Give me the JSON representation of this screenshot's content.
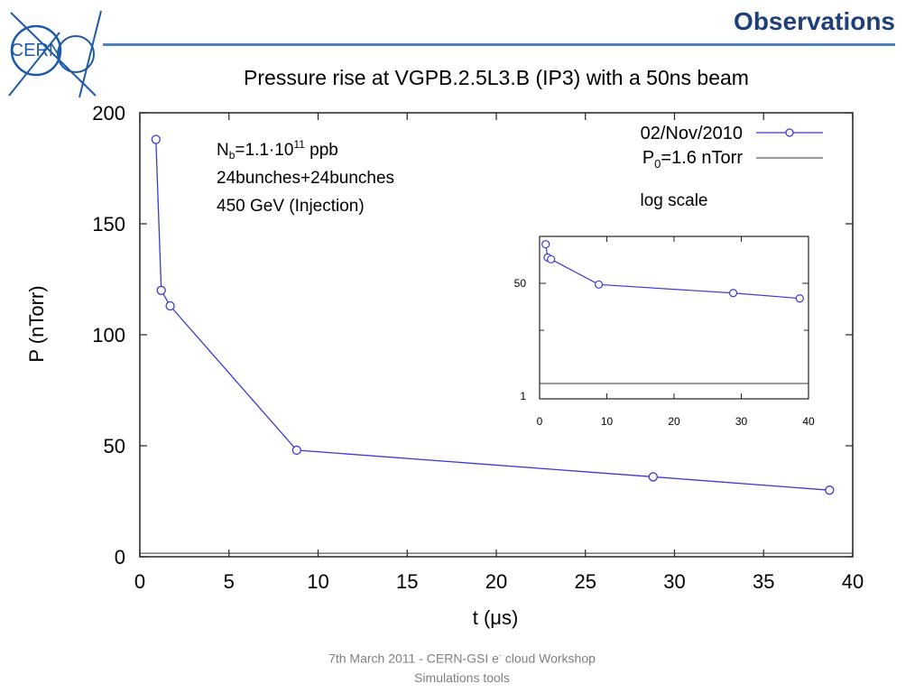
{
  "header": {
    "logo_text": "CERN",
    "slide_title": "Observations"
  },
  "chart_data": [
    {
      "type": "line",
      "title": "Pressure rise at VGPB.2.5L3.B (IP3) with a 50ns beam",
      "xlabel": "t (μs)",
      "ylabel": "P (nTorr)",
      "xlim": [
        0,
        40
      ],
      "ylim": [
        0,
        200
      ],
      "xticks": [
        0,
        5,
        10,
        15,
        20,
        25,
        30,
        35,
        40
      ],
      "yticks": [
        0,
        50,
        100,
        150,
        200
      ],
      "grid": false,
      "legend_position": "top-right",
      "series": [
        {
          "name": "02/Nov/2010",
          "color": "#3a3acc",
          "marker": "open-circle",
          "x": [
            0.9,
            1.2,
            1.7,
            8.8,
            28.8,
            38.7
          ],
          "y": [
            188,
            120,
            113,
            48,
            36,
            30
          ]
        },
        {
          "name": "P0=1.6 nTorr",
          "name_parts": {
            "main": "P",
            "sub": "0",
            "rest": "=1.6 nTorr"
          },
          "color": "#333333",
          "constant_y": 1.6
        }
      ],
      "annotations": {
        "nb_main": "N",
        "nb_sub": "b",
        "nb_mid": "=1.1·10",
        "nb_sup": "11",
        "nb_end": " ppb",
        "line2": "24bunches+24bunches",
        "line3": "450 GeV (Injection)",
        "scale_note": "log scale"
      }
    },
    {
      "type": "line",
      "scale": "log",
      "xlim": [
        0,
        40
      ],
      "xticks": [
        0,
        10,
        20,
        30,
        40
      ],
      "ytick_labels": [
        "1",
        "50"
      ],
      "series": [
        {
          "color": "#3a3acc",
          "marker": "open-circle",
          "x": [
            0.9,
            1.2,
            1.7,
            8.8,
            28.8,
            38.7
          ],
          "y": [
            188,
            120,
            113,
            48,
            36,
            30
          ]
        }
      ]
    }
  ],
  "footer": {
    "line1_a": "7th March 2011     -    CERN-GSI e",
    "line1_sup": "-",
    "line1_b": " cloud  Workshop",
    "line2": "Simulations tools"
  }
}
